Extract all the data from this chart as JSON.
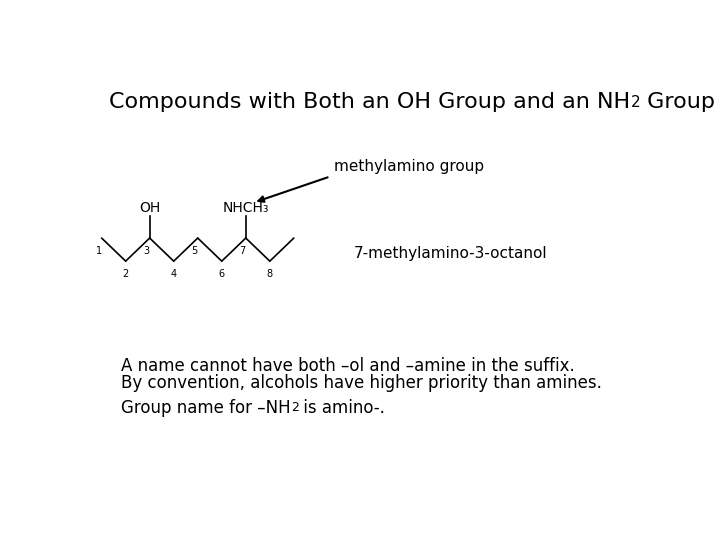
{
  "bg_color": "#ffffff",
  "text_color": "#000000",
  "title_fontsize": 16,
  "body_fontsize": 12,
  "methylamino_label": "methylamino group",
  "compound_name": "7-methylamino-3-octanol",
  "line1": "A name cannot have both –ol and –amine in the suffix.",
  "line2": "By convention, alcohols have higher priority than amines.",
  "line3_part1": "Group name for –NH",
  "line3_sub": "2",
  "line3_part2": " is amino-.",
  "OH_label": "OH",
  "NHCH3_label": "NHCH₃",
  "numbers": [
    "1",
    "2",
    "3",
    "4",
    "5",
    "6",
    "7",
    "8"
  ]
}
